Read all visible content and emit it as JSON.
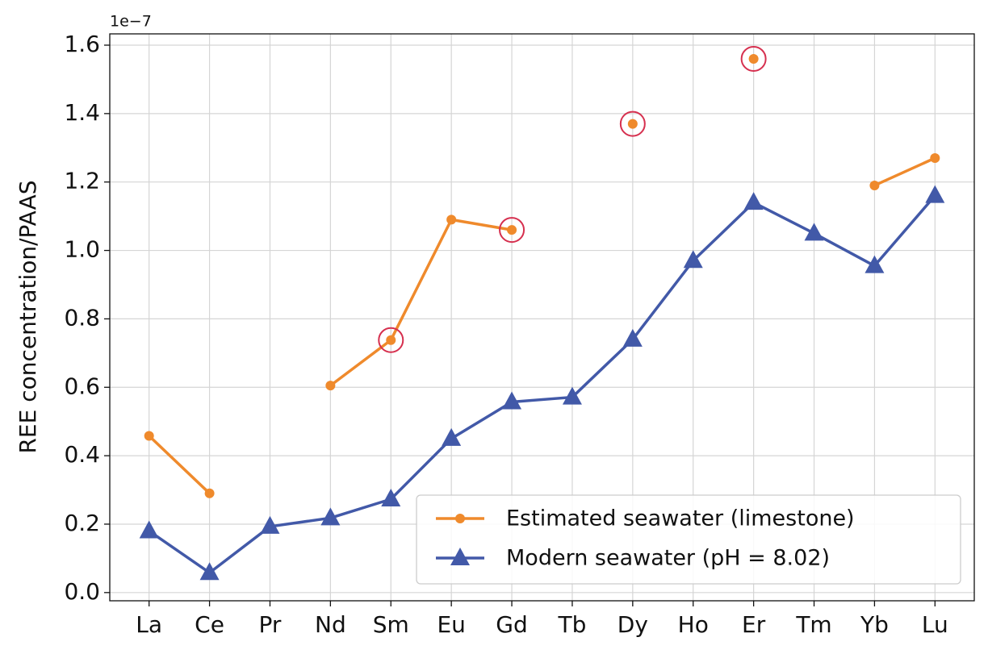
{
  "chart_data": {
    "type": "line",
    "y_label": "REE concentration/PAAS",
    "y_offset_label": "1e−7",
    "categories": [
      "La",
      "Ce",
      "Pr",
      "Nd",
      "Sm",
      "Eu",
      "Gd",
      "Tb",
      "Dy",
      "Ho",
      "Er",
      "Tm",
      "Yb",
      "Lu"
    ],
    "series": [
      {
        "name": "Estimated seawater (limestone)",
        "color": "#ef8a2c",
        "marker": "circle",
        "values": [
          0.458,
          0.29,
          null,
          0.605,
          0.738,
          1.09,
          1.06,
          null,
          1.37,
          null,
          1.56,
          null,
          1.19,
          1.27
        ],
        "highlight": [
          false,
          false,
          false,
          false,
          true,
          false,
          true,
          false,
          true,
          false,
          true,
          false,
          false,
          false
        ],
        "highlight_color": "#d6304f"
      },
      {
        "name": "Modern seawater (pH = 8.02)",
        "color": "#4259a8",
        "marker": "triangle",
        "values": [
          0.18,
          0.058,
          0.193,
          0.218,
          0.273,
          0.45,
          0.557,
          0.571,
          0.74,
          0.97,
          1.14,
          1.05,
          0.955,
          1.16
        ]
      }
    ],
    "ylim": [
      -0.024,
      1.633
    ],
    "yticks": [
      {
        "value": 0,
        "label": "0.0"
      },
      0.2,
      0.4,
      0.6,
      0.8,
      {
        "value": 1,
        "label": "1.0"
      },
      1.2,
      1.4,
      1.6
    ],
    "grid": true,
    "legend": "lower right"
  }
}
